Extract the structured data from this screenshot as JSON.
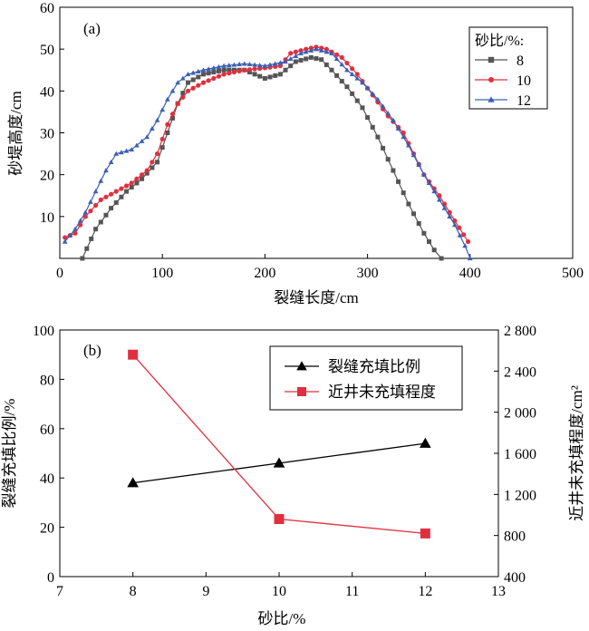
{
  "chart_data": [
    {
      "type": "line",
      "panel_label": "(a)",
      "xlabel": "裂缝长度/cm",
      "ylabel": "砂堤高度/cm",
      "xlim": [
        0,
        500
      ],
      "ylim": [
        0,
        60
      ],
      "xticks": [
        0,
        100,
        200,
        300,
        400,
        500
      ],
      "yticks": [
        10,
        20,
        30,
        40,
        50,
        60
      ],
      "legend_title": "砂比/%:",
      "legend_position": "top-right",
      "series": [
        {
          "name": "8",
          "color": "#555555",
          "marker": "square",
          "x": [
            22,
            35,
            50,
            65,
            80,
            95,
            105,
            115,
            125,
            140,
            160,
            180,
            200,
            215,
            230,
            245,
            255,
            265,
            280,
            295,
            310,
            325,
            340,
            355,
            365,
            372
          ],
          "y": [
            0,
            7,
            12,
            16,
            19,
            23,
            30,
            37,
            42,
            44,
            45,
            45,
            43,
            44,
            47,
            48,
            47.5,
            45,
            41,
            36,
            29,
            21,
            13,
            6,
            2,
            0
          ]
        },
        {
          "name": "10",
          "color": "#e0303f",
          "marker": "circle",
          "x": [
            5,
            15,
            25,
            40,
            55,
            70,
            85,
            95,
            105,
            115,
            125,
            140,
            160,
            180,
            200,
            215,
            225,
            240,
            250,
            260,
            275,
            290,
            305,
            320,
            335,
            345,
            355,
            370,
            385,
            398
          ],
          "y": [
            5,
            6,
            10,
            14,
            16,
            18,
            21,
            25,
            32,
            37,
            40,
            42,
            44,
            45,
            45.5,
            46,
            49,
            50,
            50.5,
            50,
            48,
            44,
            39,
            34,
            30,
            25,
            20,
            15,
            9,
            4
          ]
        },
        {
          "name": "12",
          "color": "#3a5fb5",
          "marker": "triangle",
          "x": [
            5,
            15,
            25,
            35,
            45,
            55,
            70,
            85,
            95,
            105,
            115,
            125,
            140,
            160,
            180,
            200,
            220,
            235,
            250,
            265,
            280,
            295,
            310,
            325,
            340,
            355,
            370,
            385,
            395,
            400
          ],
          "y": [
            4,
            7,
            11,
            16,
            21,
            25,
            26,
            29,
            33,
            38,
            42,
            44,
            45,
            46,
            46.5,
            46,
            47,
            49,
            50,
            49,
            45,
            42,
            38,
            33,
            27,
            20,
            14,
            8,
            3,
            0
          ]
        }
      ]
    },
    {
      "type": "line",
      "panel_label": "(b)",
      "xlabel": "砂比/%",
      "ylabel_left": "裂缝充填比例/%",
      "ylabel_right": "近井未充填程度/cm²",
      "xlim": [
        7,
        13
      ],
      "ylim_left": [
        0,
        100
      ],
      "ylim_right": [
        400,
        2800
      ],
      "xticks": [
        7,
        8,
        9,
        10,
        11,
        12,
        13
      ],
      "yticks_left": [
        0,
        20,
        40,
        60,
        80,
        100
      ],
      "yticks_right": [
        400,
        800,
        1200,
        1600,
        2000,
        2400,
        2800
      ],
      "ytick_right_labels": [
        "400",
        "800",
        "1 200",
        "1 600",
        "2 000",
        "2 400",
        "2 800"
      ],
      "legend_position": "top-center",
      "series": [
        {
          "name": "裂缝充填比例",
          "color": "#000000",
          "marker": "triangle",
          "axis": "left",
          "x": [
            8,
            10,
            12
          ],
          "y": [
            38,
            46,
            54
          ]
        },
        {
          "name": "近井未充填程度",
          "color": "#e0303f",
          "marker": "square",
          "axis": "right",
          "x": [
            8,
            10,
            12
          ],
          "y": [
            2560,
            960,
            820
          ]
        }
      ]
    }
  ]
}
